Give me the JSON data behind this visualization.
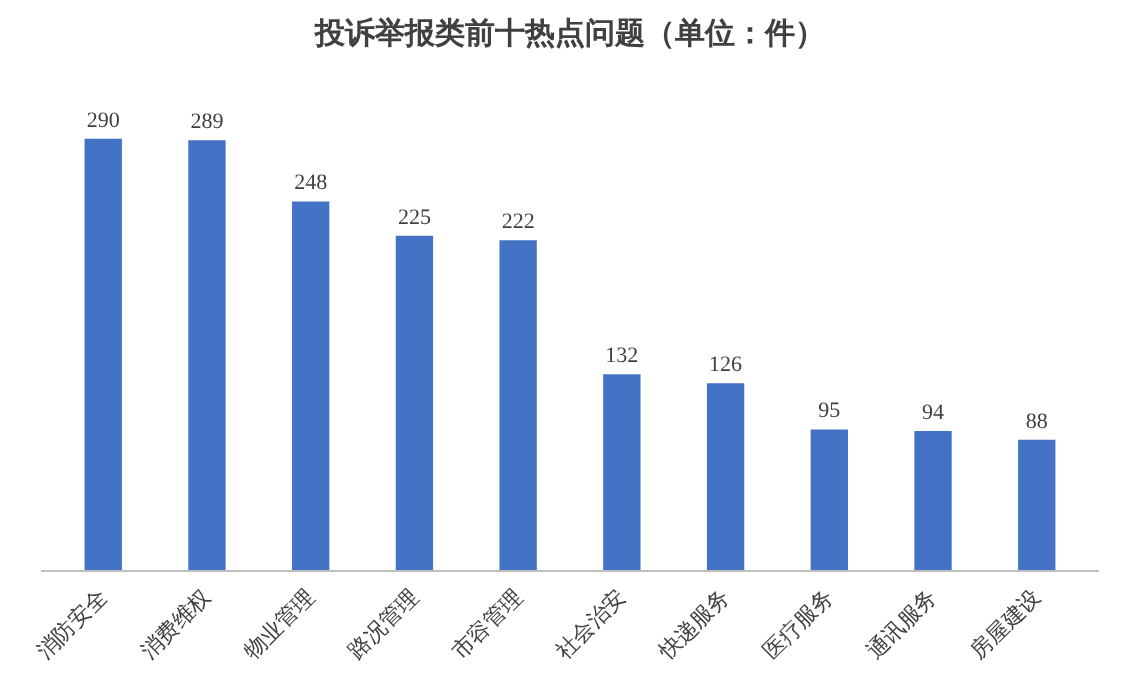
{
  "chart_data": {
    "type": "bar",
    "title": "投诉举报类前十热点问题（单位：件）",
    "categories": [
      "消防安全",
      "消费维权",
      "物业管理",
      "路况管理",
      "市容管理",
      "社会治安",
      "快递服务",
      "医疗服务",
      "通讯服务",
      "房屋建设"
    ],
    "values": [
      290,
      289,
      248,
      225,
      222,
      132,
      126,
      95,
      94,
      88
    ],
    "color": "#4472c4",
    "data_labels": true
  }
}
